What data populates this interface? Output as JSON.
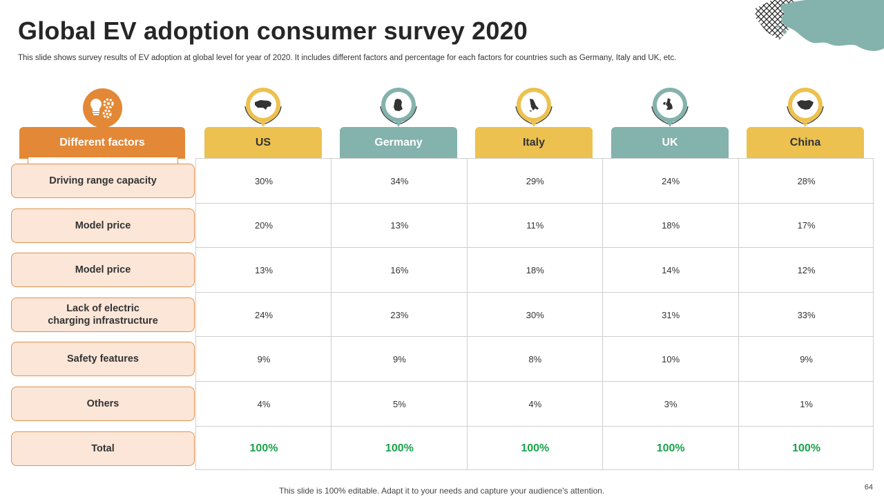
{
  "title": "Global EV adoption consumer survey 2020",
  "subtitle": "This slide shows survey results of EV adoption at global level for year of 2020. It includes different factors and percentage for each factors for countries such as Germany, Italy and UK, etc.",
  "factor_header": "Different factors",
  "colors": {
    "orange": "#e38836",
    "yellow": "#ecc14f",
    "teal": "#84b2ad",
    "green": "#1aa34a"
  },
  "countries": [
    {
      "name": "US",
      "icon": "us-map-icon"
    },
    {
      "name": "Germany",
      "icon": "germany-map-icon"
    },
    {
      "name": "Italy",
      "icon": "italy-map-icon"
    },
    {
      "name": "UK",
      "icon": "uk-map-icon"
    },
    {
      "name": "China",
      "icon": "china-map-icon"
    }
  ],
  "rows": [
    {
      "factor": "Driving range capacity",
      "values": [
        "30%",
        "34%",
        "29%",
        "24%",
        "28%"
      ]
    },
    {
      "factor": "Model price",
      "values": [
        "20%",
        "13%",
        "11%",
        "18%",
        "17%"
      ]
    },
    {
      "factor": "Model price",
      "values": [
        "13%",
        "16%",
        "18%",
        "14%",
        "12%"
      ]
    },
    {
      "factor": "Lack of electric\ncharging infrastructure",
      "values": [
        "24%",
        "23%",
        "30%",
        "31%",
        "33%"
      ]
    },
    {
      "factor": "Safety features",
      "values": [
        "9%",
        "9%",
        "8%",
        "10%",
        "9%"
      ]
    },
    {
      "factor": "Others",
      "values": [
        "4%",
        "5%",
        "4%",
        "3%",
        "1%"
      ]
    },
    {
      "factor": "Total",
      "values": [
        "100%",
        "100%",
        "100%",
        "100%",
        "100%"
      ]
    }
  ],
  "footer": "This slide is 100% editable. Adapt it to your needs and capture your audience's attention.",
  "page_number": "64"
}
